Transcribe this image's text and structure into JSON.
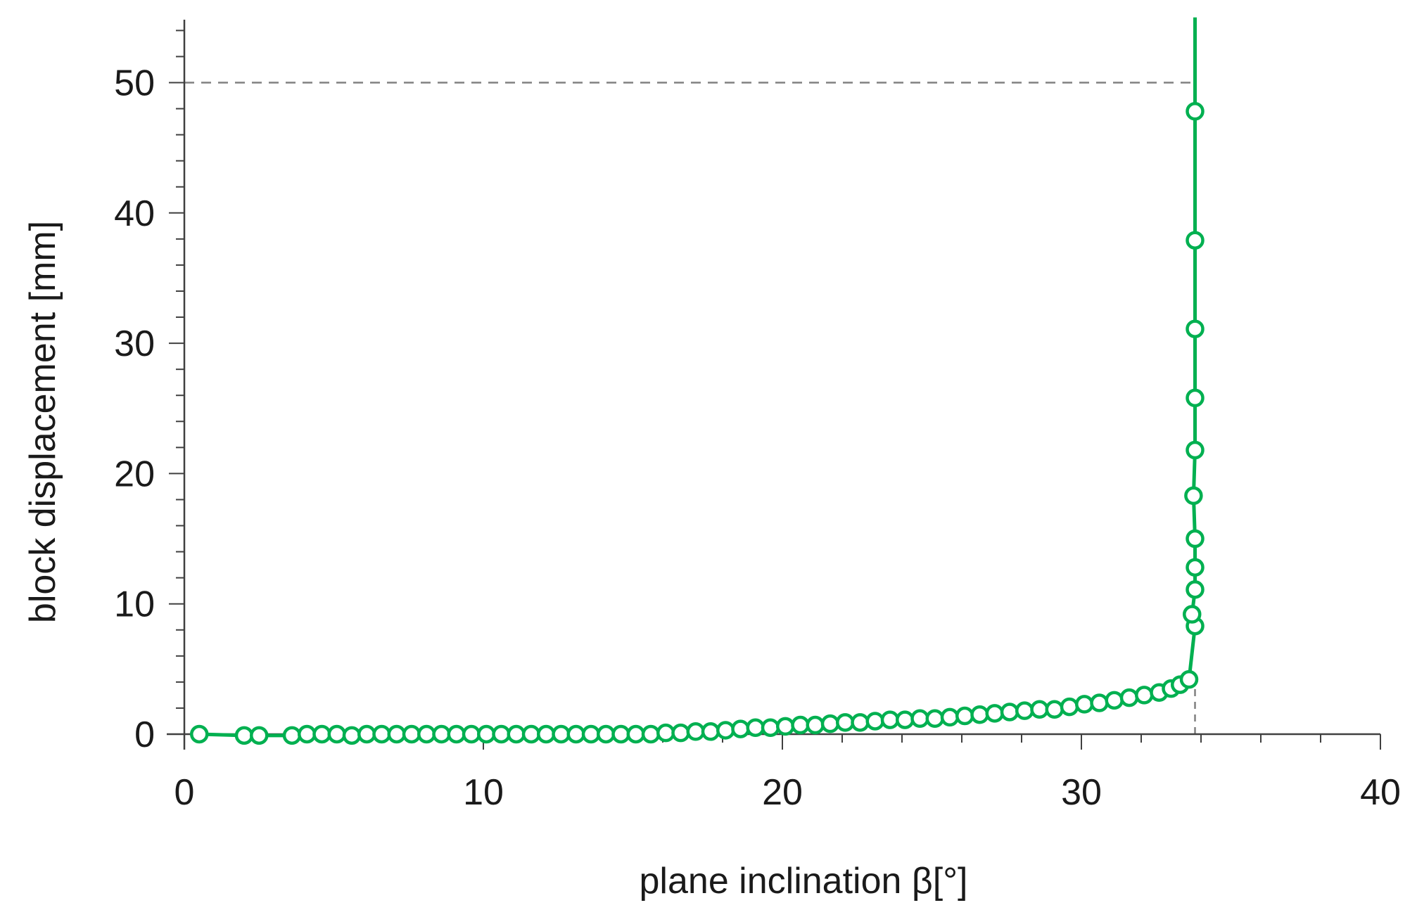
{
  "chart_data": {
    "type": "line",
    "xlabel": "plane inclination β[°]",
    "ylabel": "block displacement  [mm]",
    "xlim": [
      0,
      40
    ],
    "ylim": [
      0,
      55
    ],
    "x_ticks": [
      0,
      10,
      20,
      30,
      40
    ],
    "y_ticks": [
      0,
      10,
      20,
      30,
      40,
      50
    ],
    "grid": false,
    "legend": "none",
    "series": [
      {
        "color": "#00b050",
        "marker": "open-circle",
        "x": [
          0.5,
          2.0,
          2.5,
          3.6,
          4.1,
          4.6,
          5.1,
          5.6,
          6.1,
          6.6,
          7.1,
          7.6,
          8.1,
          8.6,
          9.1,
          9.6,
          10.1,
          10.6,
          11.1,
          11.6,
          12.1,
          12.6,
          13.1,
          13.6,
          14.1,
          14.6,
          15.1,
          15.6,
          16.1,
          16.6,
          17.1,
          17.6,
          18.1,
          18.6,
          19.1,
          19.6,
          20.1,
          20.6,
          21.1,
          21.6,
          22.1,
          22.6,
          23.1,
          23.6,
          24.1,
          24.6,
          25.1,
          25.6,
          26.1,
          26.6,
          27.1,
          27.6,
          28.1,
          28.6,
          29.1,
          29.6,
          30.1,
          30.6,
          31.1,
          31.6,
          32.1,
          32.6,
          33.0,
          33.3,
          33.6,
          33.8,
          33.7,
          33.8,
          33.8,
          33.8,
          33.75,
          33.8,
          33.8,
          33.8,
          33.8,
          33.8
        ],
        "y": [
          0.0,
          -0.1,
          -0.1,
          -0.1,
          0.0,
          0.0,
          0.0,
          -0.1,
          0.0,
          0.0,
          0.0,
          0.0,
          0.0,
          0.0,
          0.0,
          0.0,
          0.0,
          0.0,
          0.0,
          0.0,
          0.0,
          0.0,
          0.0,
          0.0,
          0.0,
          0.0,
          0.0,
          0.0,
          0.1,
          0.1,
          0.2,
          0.2,
          0.3,
          0.4,
          0.5,
          0.5,
          0.6,
          0.7,
          0.7,
          0.8,
          0.9,
          0.9,
          1.0,
          1.1,
          1.1,
          1.2,
          1.2,
          1.3,
          1.4,
          1.5,
          1.6,
          1.7,
          1.8,
          1.9,
          1.9,
          2.1,
          2.3,
          2.4,
          2.6,
          2.8,
          3.0,
          3.2,
          3.5,
          3.8,
          4.2,
          8.3,
          9.2,
          11.1,
          12.8,
          15.0,
          18.3,
          21.8,
          25.8,
          31.1,
          37.9,
          47.8
        ],
        "line_extension": {
          "x": 33.8,
          "y": 55
        }
      }
    ],
    "reference_lines": [
      {
        "orientation": "horizontal",
        "y": 50,
        "x_from": 0,
        "x_to": 33.8,
        "style": "dashed",
        "color": "#808080"
      },
      {
        "orientation": "vertical",
        "x": 33.8,
        "y_from": 0,
        "y_to": 4.2,
        "style": "dashed",
        "color": "#808080"
      }
    ]
  }
}
